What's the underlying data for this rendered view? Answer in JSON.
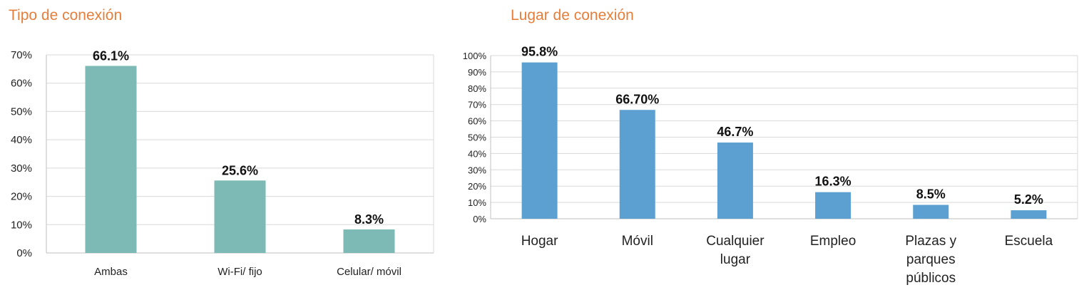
{
  "chart_data": [
    {
      "type": "bar",
      "title": "Tipo de conexión",
      "categories": [
        "Ambas",
        "Wi-Fi/ fijo",
        "Celular/ móvil"
      ],
      "values": [
        66.1,
        25.6,
        8.3
      ],
      "data_labels": [
        "66.1%",
        "25.6%",
        "8.3%"
      ],
      "yticks": [
        "0%",
        "10%",
        "20%",
        "30%",
        "40%",
        "50%",
        "60%",
        "70%"
      ],
      "ylim": [
        0,
        70
      ],
      "grid": true,
      "color": "#7dbab6"
    },
    {
      "type": "bar",
      "title": "Lugar de conexión",
      "categories": [
        "Hogar",
        "Móvil",
        "Cualquier lugar",
        "Empleo",
        "Plazas y parques públicos",
        "Escuela"
      ],
      "category_lines": [
        [
          "Hogar"
        ],
        [
          "Móvil"
        ],
        [
          "Cualquier",
          "lugar"
        ],
        [
          "Empleo"
        ],
        [
          "Plazas y",
          "parques",
          "públicos"
        ],
        [
          "Escuela"
        ]
      ],
      "values": [
        95.8,
        66.7,
        46.7,
        16.3,
        8.5,
        5.2
      ],
      "data_labels": [
        "95.8%",
        "66.70%",
        "46.7%",
        "16.3%",
        "8.5%",
        "5.2%"
      ],
      "yticks": [
        "0%",
        "10%",
        "20%",
        "30%",
        "40%",
        "50%",
        "60%",
        "70%",
        "80%",
        "90%",
        "100%"
      ],
      "ylim": [
        0,
        100
      ],
      "grid": true,
      "color": "#5ba0d0"
    }
  ]
}
